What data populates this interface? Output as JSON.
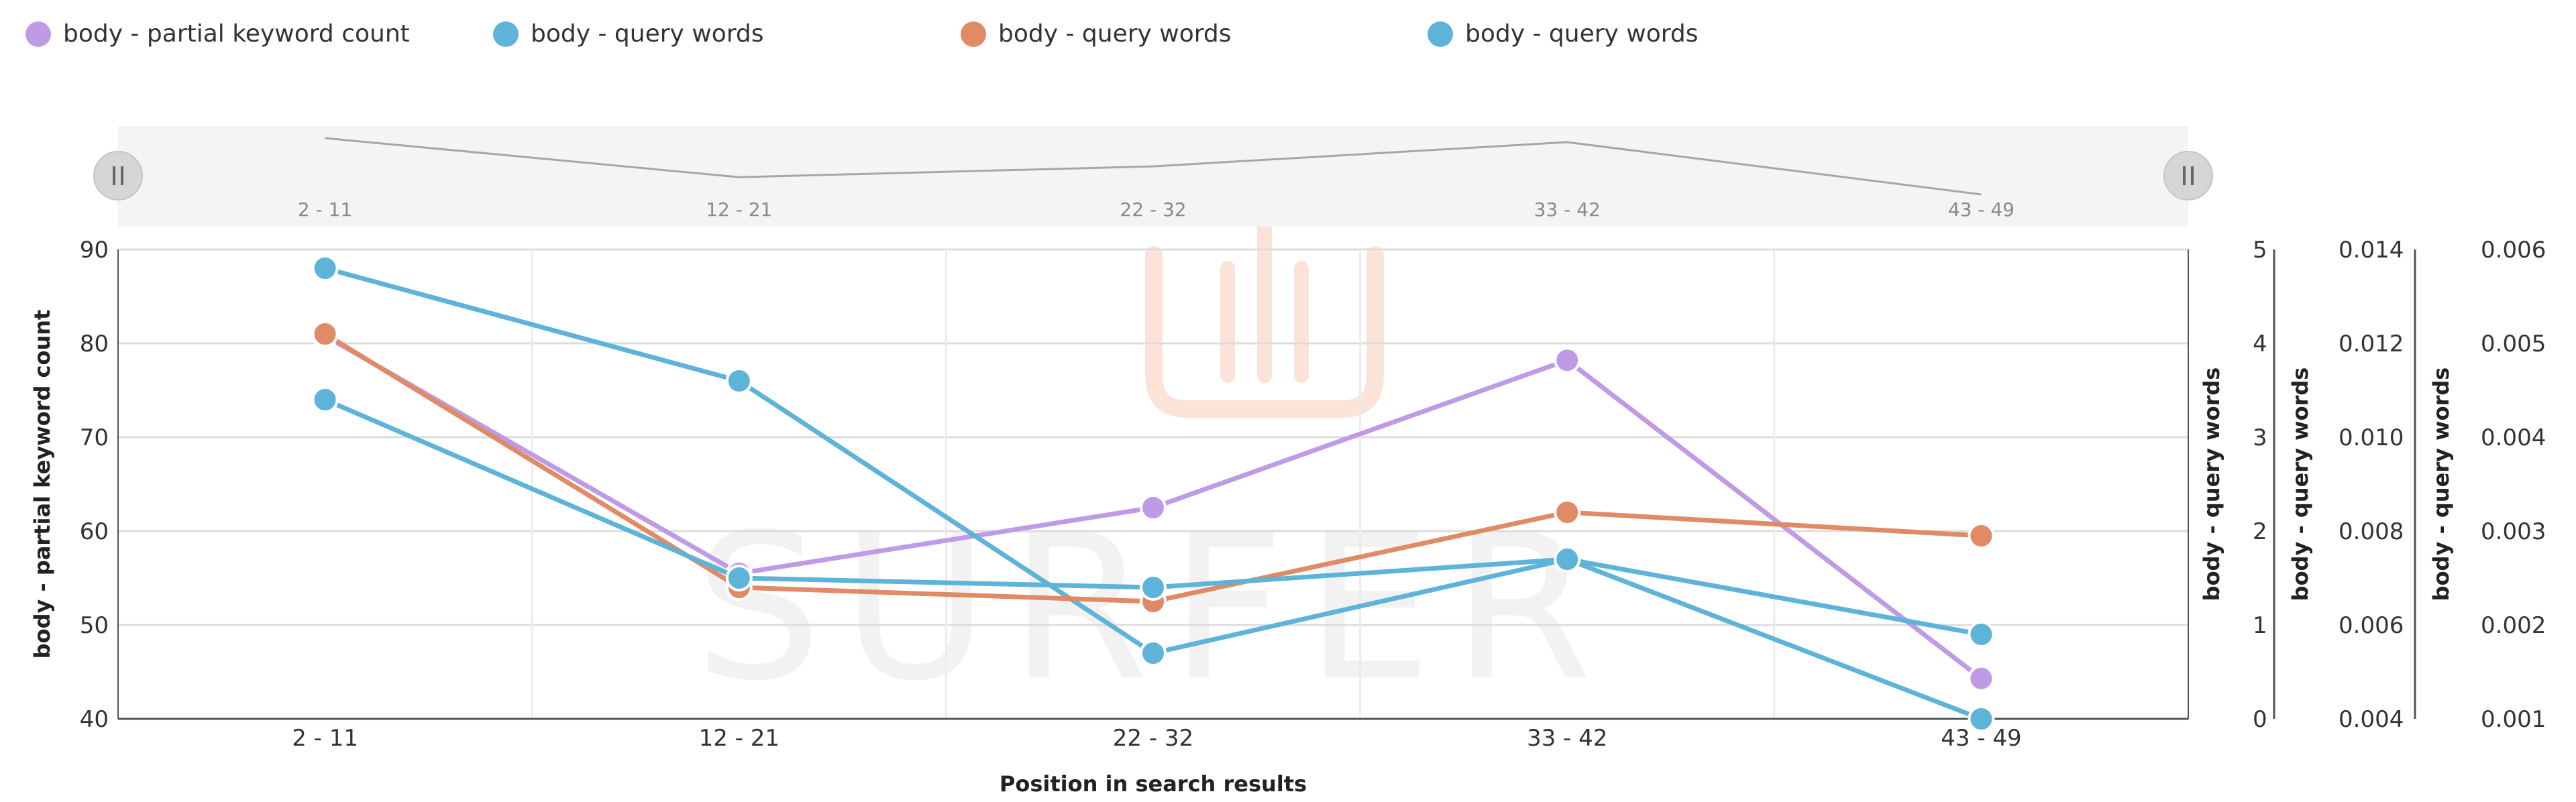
{
  "legend": [
    {
      "label": "body - partial keyword count",
      "color": "#bf9ae6"
    },
    {
      "label": "body - query words",
      "color": "#5eb3d9"
    },
    {
      "label": "body - query words",
      "color": "#e08a66"
    },
    {
      "label": "body - query words",
      "color": "#5eb3d9"
    }
  ],
  "watermark": "SURFER",
  "navigator": {
    "left_handle_icon": "pause-bars-icon",
    "right_handle_icon": "pause-bars-icon",
    "labels": [
      "2 - 11",
      "12 - 21",
      "22 - 32",
      "33 - 42",
      "43 - 49"
    ]
  },
  "chart_data": {
    "type": "line",
    "categories": [
      "2 - 11",
      "12 - 21",
      "22 - 32",
      "33 - 42",
      "43 - 49"
    ],
    "xlabel": "Position in search results",
    "grid": true,
    "axes": [
      {
        "id": "left",
        "title": "body - partial keyword count",
        "ylim": [
          40,
          90
        ],
        "ticks": [
          "40",
          "50",
          "60",
          "70",
          "80",
          "90"
        ]
      },
      {
        "id": "r1",
        "title": "body - query words",
        "ylim": [
          0,
          5
        ],
        "ticks": [
          "0",
          "1",
          "2",
          "3",
          "4",
          "5"
        ]
      },
      {
        "id": "r2",
        "title": "body - query words",
        "ylim": [
          0.004,
          0.014
        ],
        "ticks": [
          "0.004",
          "0.006",
          "0.008",
          "0.010",
          "0.012",
          "0.014"
        ]
      },
      {
        "id": "r3",
        "title": "body - query words",
        "ylim": [
          0.001,
          0.006
        ],
        "ticks": [
          "0.001",
          "0.002",
          "0.003",
          "0.004",
          "0.005",
          "0.006"
        ]
      }
    ],
    "series": [
      {
        "name": "body - partial keyword count",
        "axis": "left",
        "color": "#bf9ae6",
        "values": [
          80.8,
          55.5,
          62.5,
          78.2,
          44.3
        ]
      },
      {
        "name": "body - query words",
        "axis": "r1",
        "color": "#5eb3d9",
        "values": [
          4.8,
          3.6,
          0.7,
          1.7,
          0.0
        ]
      },
      {
        "name": "body - query words",
        "axis": "r2",
        "color": "#e08a66",
        "values": [
          0.0122,
          0.0068,
          0.0065,
          0.0084,
          0.0079
        ]
      },
      {
        "name": "body - query words",
        "axis": "r3",
        "color": "#5eb3d9",
        "values": [
          0.0044,
          0.0025,
          0.0024,
          0.0027,
          0.0019
        ]
      }
    ],
    "navigator_values": [
      80.8,
      55.5,
      62.5,
      78.2,
      44.3
    ]
  }
}
